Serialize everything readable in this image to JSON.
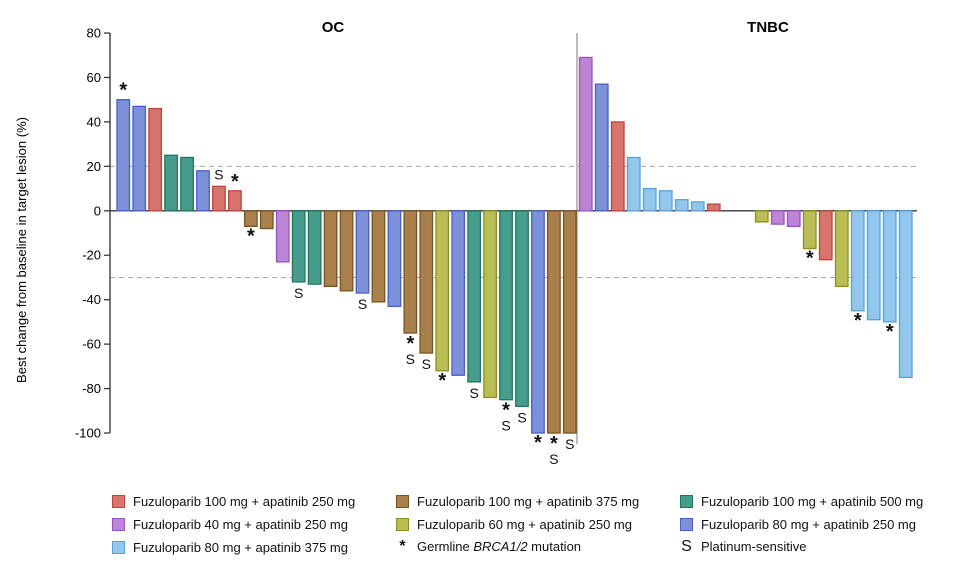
{
  "chart_data": {
    "type": "bar",
    "subtype": "waterfall",
    "ylabel": "Best change from baseline in target lesion (%)",
    "y_ticks": [
      80,
      60,
      40,
      20,
      0,
      -20,
      -40,
      -60,
      -80,
      -100
    ],
    "ylim": [
      -100,
      80
    ],
    "reference_lines": [
      20,
      -30
    ],
    "grid": "dashed-reference-only",
    "palette": {
      "red": {
        "fill": "#D8736D",
        "stroke": "#BC453E"
      },
      "brown": {
        "fill": "#A97F4B",
        "stroke": "#7A5524"
      },
      "teal": {
        "fill": "#479D8C",
        "stroke": "#22755F"
      },
      "purple": {
        "fill": "#BC85D5",
        "stroke": "#9C53BE"
      },
      "yellow": {
        "fill": "#B9BD53",
        "stroke": "#8A9027"
      },
      "blue": {
        "fill": "#7C91D9",
        "stroke": "#4A5EC4"
      },
      "lightblue": {
        "fill": "#93C6EC",
        "stroke": "#5D9FD6"
      }
    },
    "panels": [
      {
        "title": "OC",
        "bars": [
          {
            "v": 50,
            "c": "blue",
            "m": "*"
          },
          {
            "v": 47,
            "c": "blue"
          },
          {
            "v": 46,
            "c": "red"
          },
          {
            "v": 25,
            "c": "teal"
          },
          {
            "v": 24,
            "c": "teal"
          },
          {
            "v": 18,
            "c": "blue"
          },
          {
            "v": 11,
            "c": "red",
            "m": "S"
          },
          {
            "v": 9,
            "c": "red",
            "m": "*"
          },
          {
            "v": -7,
            "c": "brown",
            "m": "*"
          },
          {
            "v": -8,
            "c": "brown"
          },
          {
            "v": -23,
            "c": "purple"
          },
          {
            "v": -32,
            "c": "teal",
            "m": "S"
          },
          {
            "v": -33,
            "c": "teal"
          },
          {
            "v": -34,
            "c": "brown"
          },
          {
            "v": -36,
            "c": "brown"
          },
          {
            "v": -37,
            "c": "blue",
            "m": "S"
          },
          {
            "v": -41,
            "c": "brown"
          },
          {
            "v": -43,
            "c": "blue"
          },
          {
            "v": -55,
            "c": "brown",
            "m": "*S"
          },
          {
            "v": -64,
            "c": "brown",
            "m": "S"
          },
          {
            "v": -72,
            "c": "yellow",
            "m": "*"
          },
          {
            "v": -74,
            "c": "blue"
          },
          {
            "v": -77,
            "c": "teal",
            "m": "S"
          },
          {
            "v": -84,
            "c": "yellow"
          },
          {
            "v": -85,
            "c": "teal",
            "m": "*S"
          },
          {
            "v": -88,
            "c": "teal",
            "m": "S"
          },
          {
            "v": -100,
            "c": "blue",
            "m": "*"
          },
          {
            "v": -100,
            "c": "brown",
            "m": "*S"
          },
          {
            "v": -100,
            "c": "brown",
            "m": "S"
          }
        ]
      },
      {
        "title": "TNBC",
        "bars": [
          {
            "v": 69,
            "c": "purple"
          },
          {
            "v": 57,
            "c": "blue"
          },
          {
            "v": 40,
            "c": "red"
          },
          {
            "v": 24,
            "c": "lightblue"
          },
          {
            "v": 10,
            "c": "lightblue"
          },
          {
            "v": 9,
            "c": "lightblue"
          },
          {
            "v": 5,
            "c": "lightblue"
          },
          {
            "v": 4,
            "c": "lightblue"
          },
          {
            "v": 3,
            "c": "red"
          },
          {
            "v": -5,
            "c": "yellow",
            "skip": 2
          },
          {
            "v": -6,
            "c": "purple"
          },
          {
            "v": -7,
            "c": "purple"
          },
          {
            "v": -17,
            "c": "yellow",
            "m": "*"
          },
          {
            "v": -22,
            "c": "red"
          },
          {
            "v": -34,
            "c": "yellow"
          },
          {
            "v": -45,
            "c": "lightblue",
            "m": "*"
          },
          {
            "v": -49,
            "c": "lightblue"
          },
          {
            "v": -50,
            "c": "lightblue",
            "m": "*"
          },
          {
            "v": -75,
            "c": "lightblue"
          }
        ]
      }
    ]
  },
  "legend": {
    "items": [
      {
        "label": "Fuzuloparib 100 mg + apatinib 250 mg",
        "color": "red"
      },
      {
        "label": "Fuzuloparib 40 mg + apatinib 250 mg",
        "color": "purple"
      },
      {
        "label": "Fuzuloparib 80 mg + apatinib 375 mg",
        "color": "lightblue"
      },
      {
        "label": "Fuzuloparib 100 mg + apatinib 375 mg",
        "color": "brown"
      },
      {
        "label": "Fuzuloparib 60 mg + apatinib 250 mg",
        "color": "yellow"
      },
      {
        "label": "Fuzuloparib 100 mg + apatinib 500 mg",
        "color": "teal"
      },
      {
        "label": "Fuzuloparib 80 mg + apatinib 250 mg",
        "color": "blue"
      }
    ],
    "star_marker": {
      "symbol": "*",
      "prefix": "Germline ",
      "italic": "BRCA1/2",
      "suffix": " mutation"
    },
    "s_marker": {
      "symbol": "S",
      "label": "Platinum-sensitive"
    }
  }
}
